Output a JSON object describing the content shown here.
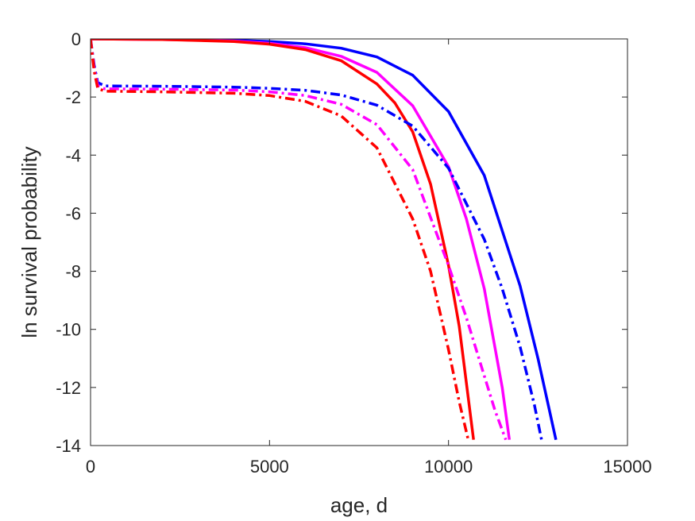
{
  "chart_data": {
    "type": "line",
    "title": "",
    "xlabel": "age, d",
    "ylabel": "ln survival probability",
    "xlim": [
      0,
      15000
    ],
    "ylim": [
      -14,
      0
    ],
    "xticks": [
      0,
      5000,
      10000,
      15000
    ],
    "yticks": [
      0,
      -2,
      -4,
      -6,
      -8,
      -10,
      -12,
      -14
    ],
    "xtick_labels": [
      "0",
      "5000",
      "10000",
      "15000"
    ],
    "ytick_labels": [
      "0",
      "-2",
      "-4",
      "-6",
      "-8",
      "-10",
      "-12",
      "-14"
    ],
    "grid": false,
    "legend": "none",
    "series": [
      {
        "color": "#0000ff",
        "style": "solid",
        "x": [
          0,
          2000,
          4000,
          5000,
          6000,
          7000,
          8000,
          9000,
          10000,
          11000,
          12000,
          12500,
          13000
        ],
        "y": [
          0,
          -0.01,
          -0.05,
          -0.09,
          -0.17,
          -0.32,
          -0.62,
          -1.25,
          -2.5,
          -4.7,
          -8.5,
          -11.0,
          -13.8
        ]
      },
      {
        "color": "#ff00ff",
        "style": "solid",
        "x": [
          0,
          2000,
          4000,
          5000,
          6000,
          7000,
          8000,
          9000,
          10000,
          10500,
          11000,
          11500,
          11700
        ],
        "y": [
          0,
          -0.02,
          -0.07,
          -0.15,
          -0.3,
          -0.6,
          -1.15,
          -2.3,
          -4.4,
          -6.2,
          -8.6,
          -12.0,
          -13.8
        ]
      },
      {
        "color": "#ff0000",
        "style": "solid",
        "x": [
          0,
          2000,
          4000,
          5000,
          6000,
          7000,
          8000,
          8500,
          9000,
          9500,
          10000,
          10300,
          10700
        ],
        "y": [
          0,
          -0.02,
          -0.09,
          -0.18,
          -0.37,
          -0.75,
          -1.55,
          -2.2,
          -3.2,
          -5.0,
          -7.8,
          -9.9,
          -13.8
        ]
      },
      {
        "color": "#0000ff",
        "style": "dashdot",
        "x": [
          0,
          100,
          200,
          400,
          2000,
          4000,
          5000,
          6000,
          7000,
          8000,
          9000,
          10000,
          11000,
          11500,
          12000,
          12400,
          12600
        ],
        "y": [
          0,
          -0.9,
          -1.5,
          -1.62,
          -1.63,
          -1.66,
          -1.7,
          -1.77,
          -1.93,
          -2.28,
          -3.0,
          -4.45,
          -6.9,
          -8.6,
          -10.6,
          -12.6,
          -13.8
        ]
      },
      {
        "color": "#ff00ff",
        "style": "dashdot",
        "x": [
          0,
          100,
          200,
          400,
          2000,
          4000,
          5000,
          6000,
          7000,
          8000,
          9000,
          10000,
          10500,
          11000,
          11300,
          11600
        ],
        "y": [
          0,
          -1.0,
          -1.6,
          -1.72,
          -1.73,
          -1.76,
          -1.82,
          -1.95,
          -2.25,
          -2.95,
          -4.5,
          -7.8,
          -9.6,
          -11.6,
          -12.8,
          -13.8
        ]
      },
      {
        "color": "#ff0000",
        "style": "dashdot",
        "x": [
          0,
          100,
          200,
          400,
          2000,
          4000,
          5000,
          6000,
          7000,
          8000,
          9000,
          9500,
          10000,
          10300,
          10550
        ],
        "y": [
          0,
          -1.1,
          -1.7,
          -1.8,
          -1.82,
          -1.87,
          -1.95,
          -2.15,
          -2.65,
          -3.75,
          -6.2,
          -8.0,
          -10.7,
          -12.5,
          -13.8
        ]
      }
    ]
  }
}
